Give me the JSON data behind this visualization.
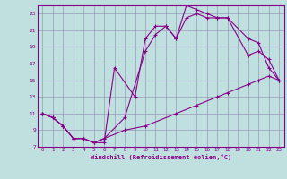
{
  "xlabel": "Windchill (Refroidissement éolien,°C)",
  "bg_color": "#c0e0e0",
  "grid_color": "#9999bb",
  "line_color": "#880088",
  "xlim": [
    -0.5,
    23.5
  ],
  "ylim": [
    7,
    24
  ],
  "xticks": [
    0,
    1,
    2,
    3,
    4,
    5,
    6,
    7,
    8,
    9,
    10,
    11,
    12,
    13,
    14,
    15,
    16,
    17,
    18,
    19,
    20,
    21,
    22,
    23
  ],
  "yticks": [
    7,
    9,
    11,
    13,
    15,
    17,
    19,
    21,
    23
  ],
  "line1_x": [
    0,
    1,
    2,
    3,
    4,
    5,
    6,
    8,
    10,
    13,
    15,
    17,
    18,
    20,
    21,
    22,
    23
  ],
  "line1_y": [
    11,
    10.5,
    9.5,
    8,
    8,
    7.5,
    8,
    9,
    9.5,
    11,
    12,
    13,
    13.5,
    14.5,
    15,
    15.5,
    15
  ],
  "line2_x": [
    0,
    1,
    2,
    3,
    4,
    5,
    6,
    7,
    9,
    10,
    11,
    12,
    13,
    14,
    15,
    16,
    17,
    18,
    20,
    21,
    22,
    23
  ],
  "line2_y": [
    11,
    10.5,
    9.5,
    8,
    8,
    7.5,
    7.5,
    16.5,
    13,
    20,
    21.5,
    21.5,
    20,
    24,
    23.5,
    23,
    22.5,
    22.5,
    20,
    19.5,
    16.5,
    15
  ],
  "line3_x": [
    0,
    1,
    2,
    3,
    4,
    5,
    6,
    8,
    10,
    11,
    12,
    13,
    14,
    15,
    16,
    17,
    18,
    20,
    21,
    22,
    23
  ],
  "line3_y": [
    11,
    10.5,
    9.5,
    8,
    8,
    7.5,
    8,
    10.5,
    18.5,
    20.5,
    21.5,
    20,
    22.5,
    23,
    22.5,
    22.5,
    22.5,
    18,
    18.5,
    17.5,
    15
  ]
}
